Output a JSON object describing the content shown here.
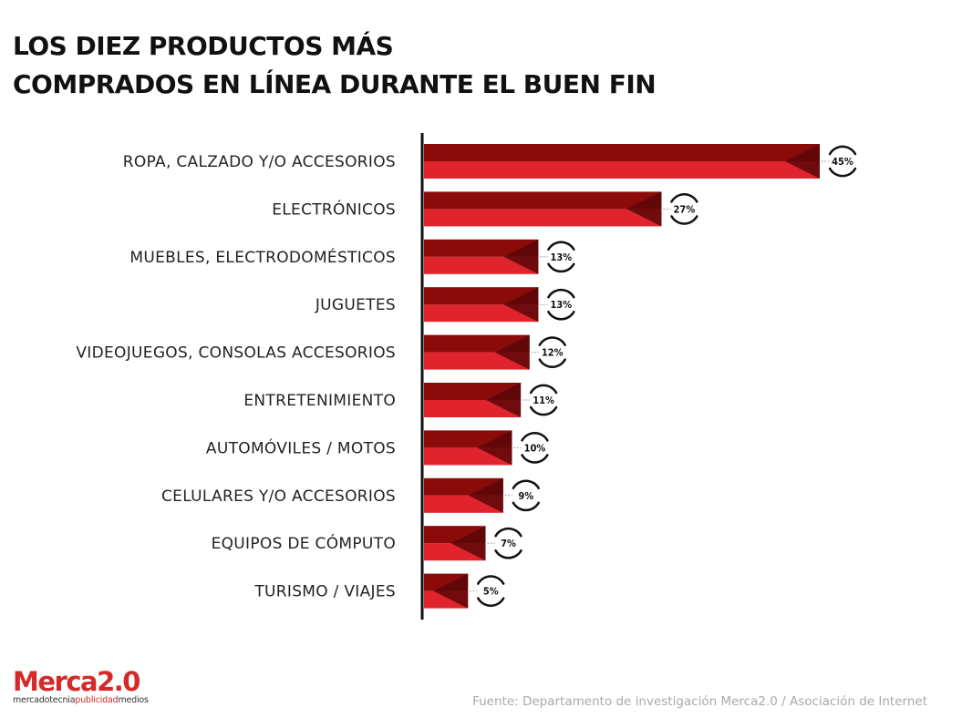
{
  "title_line1": "LOS DIEZ PRODUCTOS MÁS",
  "title_line2": "COMPRADOS EN LÍNEA DURANTE EL BUEN FIN",
  "logo": {
    "main": "Merca2.0",
    "main_a": "Merca",
    "main_b": "2.0",
    "sub_a": "mercadotecnia",
    "sub_b": "publicidad",
    "sub_c": "medios"
  },
  "source": "Fuente: Departamento de investigación Merca2.0 / Asociación de Internet",
  "colors": {
    "bar_light": "#e0242e",
    "bar_dark": "#8b0b0b",
    "bar_triangle": "#5a0707"
  },
  "chart_data": {
    "type": "bar",
    "orientation": "horizontal",
    "categories": [
      "ROPA, CALZADO Y/O ACCESORIOS",
      "ELECTRÓNICOS",
      "MUEBLES, ELECTRODOMÉSTICOS",
      "JUGUETES",
      "VIDEOJUEGOS, CONSOLAS ACCESORIOS",
      "ENTRETENIMIENTO",
      "AUTOMÓVILES / MOTOS",
      "CELULARES Y/O ACCESORIOS",
      "EQUIPOS DE CÓMPUTO",
      "TURISMO / VIAJES"
    ],
    "values": [
      45,
      27,
      13,
      13,
      12,
      11,
      10,
      9,
      7,
      5
    ],
    "labels": [
      "45%",
      "27%",
      "13%",
      "13%",
      "12%",
      "11%",
      "10%",
      "9%",
      "7%",
      "5%"
    ],
    "xlim": [
      0,
      45
    ],
    "grid": false,
    "legend": "none"
  }
}
